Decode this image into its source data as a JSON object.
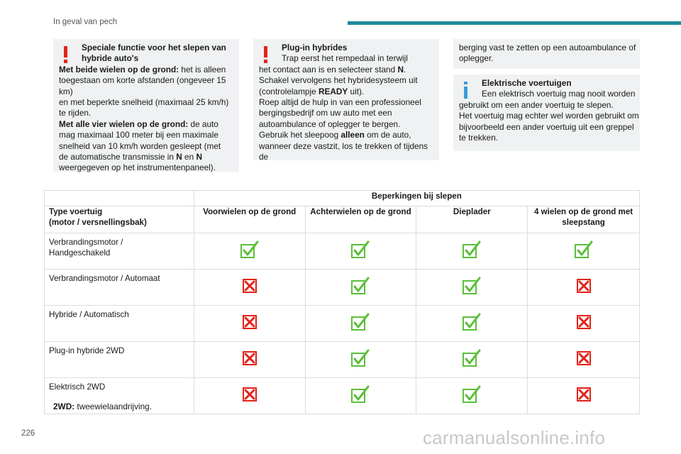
{
  "header": {
    "title": "In geval van pech",
    "accent_color": "#1e8a9a"
  },
  "box_hybrid": {
    "icon": "warning-icon",
    "heading_line1": "Speciale functie voor het slepen van",
    "heading_line2": "hybride auto's",
    "two_wheels_label": "Met beide wielen op de grond:",
    "two_wheels_l1": " het is alleen",
    "two_wheels_l2": "toegestaan om korte afstanden (ongeveer 15 km)",
    "two_wheels_l3": "en met beperkte snelheid (maximaal 25 km/h)",
    "two_wheels_l4": "te rijden.",
    "four_wheels_label": "Met alle vier wielen op de grond:",
    "four_wheels_l1": " de auto",
    "four_wheels_l2": "mag maximaal 100 meter bij een maximale",
    "four_wheels_l3": "snelheid van 10 km/h worden gesleept (met",
    "four_wheels_l4a": "de automatische transmissie in ",
    "four_wheels_n1": "N",
    "four_wheels_en": " en ",
    "four_wheels_n2": "N",
    "four_wheels_l5": "weergegeven op het instrumentenpaneel)."
  },
  "box_plugin": {
    "icon": "warning-icon",
    "heading": "Plug-in hybrides",
    "l1": "Trap eerst het rempedaal in terwijl",
    "l2a": "het contact aan is en selecteer stand ",
    "l2b": "N",
    "l2c": ".",
    "l3": "Schakel vervolgens het hybridesysteem uit",
    "l4a": "(controlelampje ",
    "l4b": "READY",
    "l4c": " uit).",
    "l5": "Roep altijd de hulp in van een professioneel",
    "l6": "bergingsbedrijf om uw auto met een",
    "l7": "autoambulance of oplegger te bergen.",
    "l8a": "Gebruik het sleepoog ",
    "l8b": "alleen",
    "l8c": " om de auto,",
    "l9": "wanneer deze vastzit, los te trekken of tijdens de"
  },
  "box_cont": {
    "l1": "berging vast te zetten op een autoambulance of",
    "l2": "oplegger."
  },
  "box_electric": {
    "icon": "info-icon",
    "heading": "Elektrische voertuigen",
    "l1": "Een elektrisch voertuig mag nooit worden",
    "l2": "gebruikt om een ander voertuig te slepen.",
    "l3": "Het voertuig mag echter wel worden gebruikt om",
    "l4": "bijvoorbeeld een ander voertuig uit een greppel",
    "l5": "te trekken."
  },
  "table": {
    "group_header": "Beperkingen bij slepen",
    "type_header_l1": "Type voertuig",
    "type_header_l2": "(motor / versnellingsbak)",
    "columns": [
      "Voorwielen op de grond",
      "Achterwielen op de grond",
      "Dieplader",
      "4 wielen op de grond met sleepstang"
    ],
    "rows": [
      {
        "label_l1": "Verbrandingsmotor /",
        "label_l2": "Handgeschakeld",
        "marks": [
          "allowed",
          "allowed",
          "allowed",
          "allowed"
        ]
      },
      {
        "label_l1": "Verbrandingsmotor / Automaat",
        "label_l2": "",
        "marks": [
          "not-allowed",
          "allowed",
          "allowed",
          "not-allowed"
        ]
      },
      {
        "label_l1": "Hybride / Automatisch",
        "label_l2": "",
        "marks": [
          "not-allowed",
          "allowed",
          "allowed",
          "not-allowed"
        ]
      },
      {
        "label_l1": "Plug-in hybride 2WD",
        "label_l2": "",
        "marks": [
          "not-allowed",
          "allowed",
          "allowed",
          "not-allowed"
        ]
      },
      {
        "label_l1": "Elektrisch 2WD",
        "label_l2": "",
        "marks": [
          "not-allowed",
          "allowed",
          "allowed",
          "not-allowed"
        ]
      }
    ],
    "check_color": "#5bbf3a",
    "cross_color": "#e2231a"
  },
  "footnote": {
    "label": "2WD:",
    "text": " tweewielaandrijving."
  },
  "page_number": "226",
  "watermark": "carmanualsonline.info"
}
